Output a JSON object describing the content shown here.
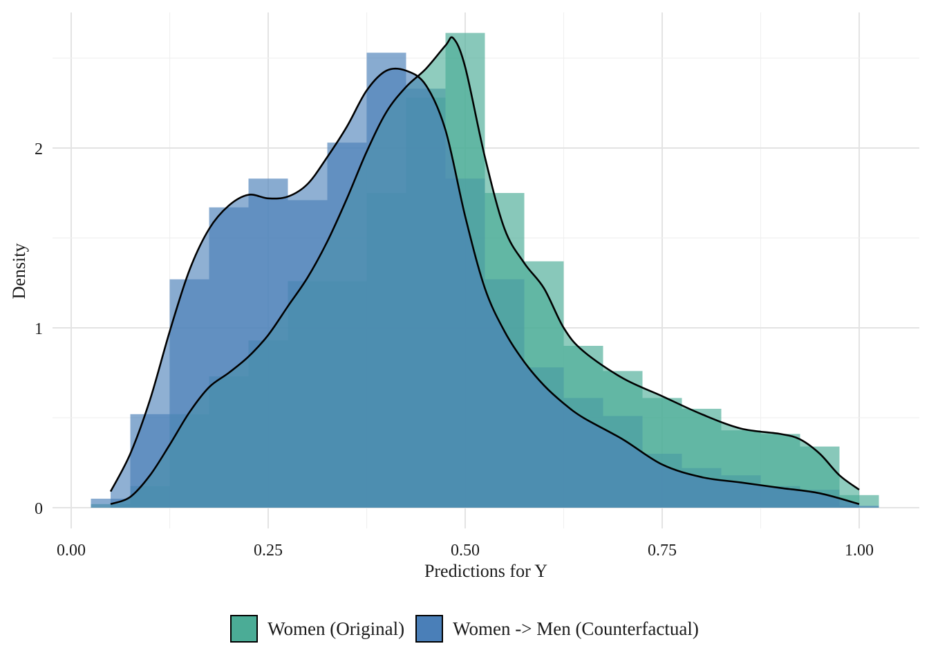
{
  "chart_data": {
    "type": "histogram-density",
    "xlabel": "Predictions for Y",
    "ylabel": "Density",
    "xlim": [
      0.0,
      1.0
    ],
    "ylim": [
      0,
      2.6
    ],
    "x_ticks": [
      "0.00",
      "0.25",
      "0.50",
      "0.75",
      "1.00"
    ],
    "x_tick_values": [
      0.0,
      0.25,
      0.5,
      0.75,
      1.0
    ],
    "y_ticks": [
      "0",
      "1",
      "2"
    ],
    "y_tick_values": [
      0,
      1,
      2
    ],
    "grid": true,
    "legend_position": "bottom",
    "bin_width": 0.05,
    "bin_starts": [
      0.025,
      0.075,
      0.125,
      0.175,
      0.225,
      0.275,
      0.325,
      0.375,
      0.425,
      0.475,
      0.525,
      0.575,
      0.625,
      0.675,
      0.725,
      0.775,
      0.825,
      0.875,
      0.925,
      0.975
    ],
    "series": [
      {
        "name": "Women (Original)",
        "color": "#4bac96",
        "hist_values": [
          0.02,
          0.12,
          0.52,
          0.73,
          0.93,
          1.26,
          1.26,
          1.75,
          2.28,
          2.64,
          1.75,
          1.37,
          0.9,
          0.76,
          0.61,
          0.55,
          0.43,
          0.41,
          0.34,
          0.07
        ],
        "density_x": [
          0.05,
          0.075,
          0.1,
          0.125,
          0.15,
          0.175,
          0.2,
          0.225,
          0.25,
          0.275,
          0.3,
          0.325,
          0.35,
          0.375,
          0.4,
          0.425,
          0.45,
          0.475,
          0.485,
          0.5,
          0.525,
          0.55,
          0.575,
          0.6,
          0.625,
          0.65,
          0.7,
          0.75,
          0.8,
          0.85,
          0.9,
          0.925,
          0.95,
          0.975,
          1.0
        ],
        "density_y": [
          0.02,
          0.06,
          0.18,
          0.35,
          0.53,
          0.67,
          0.75,
          0.84,
          0.96,
          1.12,
          1.28,
          1.48,
          1.72,
          1.98,
          2.2,
          2.34,
          2.44,
          2.57,
          2.61,
          2.45,
          1.95,
          1.55,
          1.36,
          1.22,
          1.0,
          0.87,
          0.72,
          0.62,
          0.52,
          0.44,
          0.41,
          0.38,
          0.3,
          0.18,
          0.1
        ]
      },
      {
        "name": "Women -> Men (Counterfactual)",
        "color": "#4a7fb8",
        "hist_values": [
          0.05,
          0.52,
          1.27,
          1.67,
          1.83,
          1.71,
          2.03,
          2.53,
          2.33,
          1.83,
          1.27,
          0.78,
          0.61,
          0.51,
          0.3,
          0.22,
          0.18,
          0.12,
          0.1,
          0.01
        ],
        "density_x": [
          0.05,
          0.075,
          0.1,
          0.125,
          0.15,
          0.175,
          0.2,
          0.225,
          0.25,
          0.275,
          0.3,
          0.325,
          0.35,
          0.375,
          0.4,
          0.425,
          0.45,
          0.475,
          0.5,
          0.525,
          0.55,
          0.575,
          0.6,
          0.625,
          0.65,
          0.7,
          0.75,
          0.8,
          0.85,
          0.9,
          0.95,
          1.0
        ],
        "density_y": [
          0.09,
          0.3,
          0.6,
          0.98,
          1.32,
          1.55,
          1.68,
          1.74,
          1.72,
          1.73,
          1.8,
          1.95,
          2.12,
          2.32,
          2.43,
          2.43,
          2.35,
          2.1,
          1.62,
          1.22,
          0.98,
          0.81,
          0.68,
          0.58,
          0.5,
          0.38,
          0.24,
          0.17,
          0.14,
          0.11,
          0.08,
          0.02
        ]
      }
    ]
  }
}
